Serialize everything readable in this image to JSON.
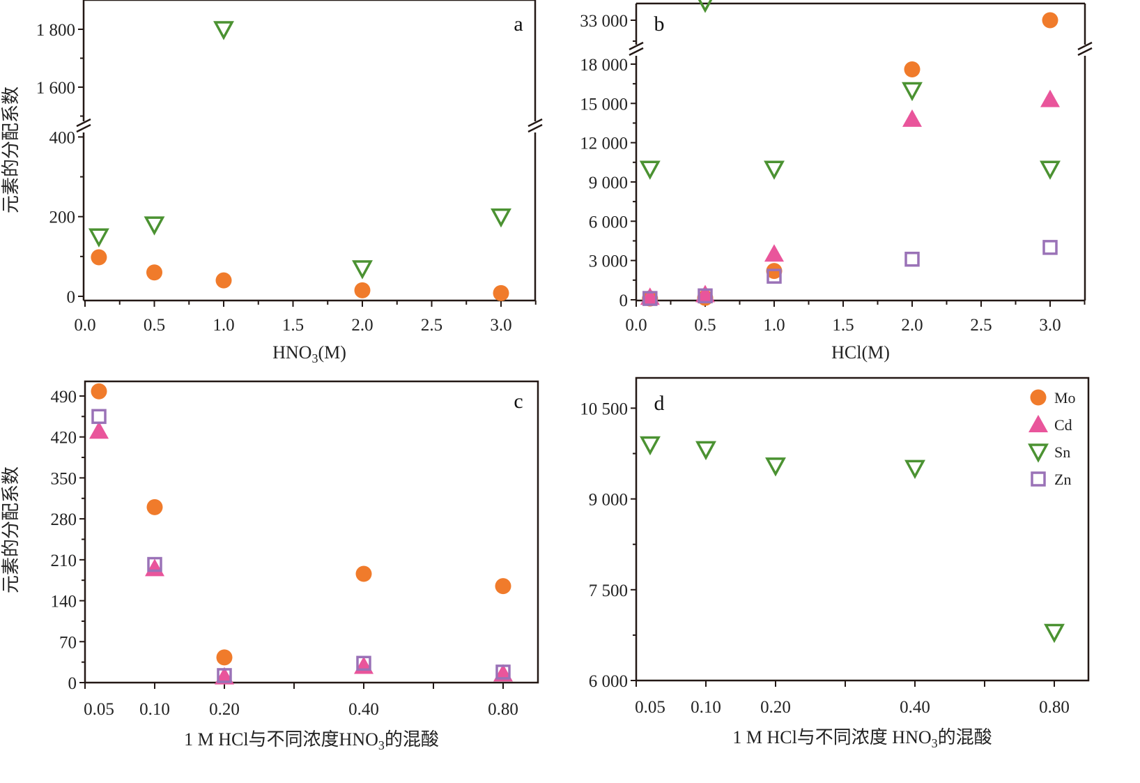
{
  "colors": {
    "Mo": "#f07b2b",
    "Cd": "#e9559b",
    "Sn": "#4b9232",
    "Zn": "#9a72b7",
    "axis": "#231815"
  },
  "legend": [
    {
      "name": "Mo",
      "marker": "circle"
    },
    {
      "name": "Cd",
      "marker": "triangle-up"
    },
    {
      "name": "Sn",
      "marker": "triangle-down-open"
    },
    {
      "name": "Zn",
      "marker": "square-open"
    }
  ],
  "chart_data": [
    {
      "panel": "a",
      "type": "scatter",
      "xlabel": "HNO3(M)",
      "xlabel_sub": "3",
      "ylabel": "元素的分配系数",
      "x_ticks": [
        "0.0",
        "0.5",
        "1.0",
        "1.5",
        "2.0",
        "2.5",
        "3.0"
      ],
      "y_ticks": [
        "0",
        "200",
        "400",
        "1 600",
        "1 800"
      ],
      "y_break": [
        420,
        1500
      ],
      "x": [
        0.1,
        0.5,
        1.0,
        2.0,
        3.0
      ],
      "series": [
        {
          "name": "Mo",
          "values": [
            98,
            60,
            40,
            15,
            8
          ]
        },
        {
          "name": "Sn",
          "values": [
            150,
            180,
            1800,
            70,
            200
          ]
        }
      ]
    },
    {
      "panel": "b",
      "type": "scatter",
      "xlabel": "HCl(M)",
      "x_ticks": [
        "0.0",
        "0.5",
        "1.0",
        "1.5",
        "2.0",
        "2.5",
        "3.0"
      ],
      "y_ticks": [
        "0",
        "3 000",
        "6 000",
        "9 000",
        "12 000",
        "15 000",
        "18 000",
        "33 000"
      ],
      "y_break": [
        19000,
        31000
      ],
      "x": [
        0.1,
        0.5,
        1.0,
        2.0,
        3.0
      ],
      "series": [
        {
          "name": "Mo",
          "values": [
            100,
            150,
            2200,
            17600,
            33000
          ]
        },
        {
          "name": "Cd",
          "values": [
            200,
            400,
            3500,
            13800,
            15300
          ]
        },
        {
          "name": "Sn",
          "values": [
            10000,
            34300,
            10000,
            16000,
            10000
          ]
        },
        {
          "name": "Zn",
          "values": [
            100,
            300,
            1800,
            3100,
            4000
          ]
        }
      ]
    },
    {
      "panel": "c",
      "type": "scatter",
      "xlabel": "1 M HCl与不同浓度HNO3的混酸",
      "xlabel_pre": "1 M HCl与不同浓度HNO",
      "xlabel_sub": "3",
      "xlabel_post": "的混酸",
      "ylabel": "元素的分配系数",
      "categories": [
        "0.05",
        "0.10",
        "0.20",
        "0.40",
        "0.80"
      ],
      "y_ticks": [
        "0",
        "70",
        "140",
        "210",
        "280",
        "350",
        "420",
        "490"
      ],
      "series": [
        {
          "name": "Mo",
          "values": [
            498,
            300,
            43,
            186,
            165
          ]
        },
        {
          "name": "Cd",
          "values": [
            430,
            195,
            10,
            28,
            15
          ]
        },
        {
          "name": "Zn",
          "values": [
            455,
            202,
            12,
            33,
            18
          ]
        }
      ]
    },
    {
      "panel": "d",
      "type": "scatter",
      "xlabel": "1 M HCl与不同浓度 HNO3的混酸",
      "xlabel_pre": "1 M HCl与不同浓度 HNO",
      "xlabel_sub": "3",
      "xlabel_post": "的混酸",
      "categories": [
        "0.05",
        "0.10",
        "0.20",
        "0.40",
        "0.80"
      ],
      "y_ticks": [
        "6 000",
        "7 500",
        "9 000",
        "10 500"
      ],
      "legend_position": "top-right",
      "series": [
        {
          "name": "Sn",
          "values": [
            9900,
            9820,
            9550,
            9510,
            6800
          ]
        }
      ]
    }
  ]
}
